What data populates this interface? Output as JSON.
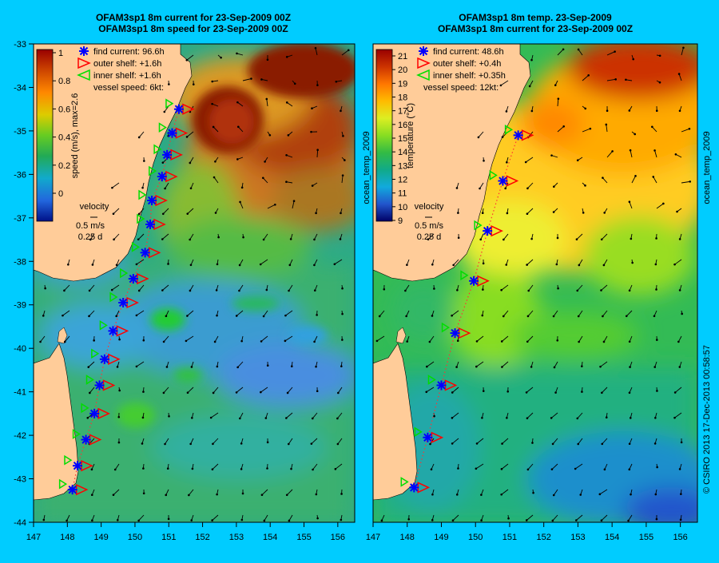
{
  "colors": {
    "background": "#00ccff",
    "land": "#ffcc99",
    "speed_low": "#0044cc",
    "speed_mid": "#22bb44",
    "speed_high": "#993300",
    "find_marker": "#0000ff",
    "outer_marker": "#ff0000",
    "inner_marker": "#00dd00"
  },
  "panels": [
    {
      "id": "speed",
      "title_line1": "OFAM3sp1 8m current for 23-Sep-2009 00Z",
      "title_line2": "OFAM3sp1 8m speed for 23-Sep-2009 00Z",
      "colorbar": {
        "label": "speed (m/s), max=2.6",
        "ticks": [
          "1",
          "0.8",
          "0.6",
          "0.4",
          "0.2",
          "0"
        ],
        "side_label": ""
      },
      "legend": {
        "find": "find current: 96.6h",
        "outer": "outer shelf: +1.6h",
        "inner": "inner shelf: +1.6h",
        "vessel": "vessel speed: 6kt:"
      },
      "velocity_key": {
        "title": "velocity",
        "speed": "0.5 m/s",
        "time": "0.25 d"
      }
    },
    {
      "id": "temp",
      "title_line1": "OFAM3sp1 8m temp. 23-Sep-2009",
      "title_line2": "OFAM3sp1 8m current for 23-Sep-2009 00Z",
      "colorbar": {
        "label": "temperature (°C)",
        "ticks": [
          "21",
          "20",
          "19",
          "18",
          "17",
          "16",
          "15",
          "14",
          "13",
          "12",
          "11",
          "10",
          "9"
        ],
        "side_label": "ocean_temp_2009"
      },
      "legend": {
        "find": "find current: 48.6h",
        "outer": "outer shelf: +0.4h",
        "inner": "inner shelf: +0.35h",
        "vessel": "vessel speed: 12kt:"
      },
      "velocity_key": {
        "title": "velocity",
        "speed": "0.5 m/s",
        "time": "0.25 d"
      }
    }
  ],
  "axes": {
    "y_ticks": [
      "-33",
      "-34",
      "-35",
      "-36",
      "-37",
      "-38",
      "-39",
      "-40",
      "-41",
      "-42",
      "-43",
      "-44"
    ],
    "x_ticks": [
      "147",
      "148",
      "149",
      "150",
      "151",
      "152",
      "153",
      "154",
      "155",
      "156"
    ],
    "lon_range": [
      147,
      156.5
    ],
    "lat_range": [
      -44,
      -33
    ]
  },
  "right_margin": {
    "top": "ocean_temp_2009",
    "bottom": "© CSIRO 2013   17-Dec-2013 00:58:57"
  },
  "track_points": [
    {
      "lon": 148.15,
      "lat": -43.25
    },
    {
      "lon": 148.3,
      "lat": -42.7
    },
    {
      "lon": 148.55,
      "lat": -42.1
    },
    {
      "lon": 148.8,
      "lat": -41.5
    },
    {
      "lon": 148.95,
      "lat": -40.85
    },
    {
      "lon": 149.1,
      "lat": -40.25
    },
    {
      "lon": 149.35,
      "lat": -39.6
    },
    {
      "lon": 149.65,
      "lat": -38.95
    },
    {
      "lon": 149.95,
      "lat": -38.4
    },
    {
      "lon": 150.3,
      "lat": -37.8
    },
    {
      "lon": 150.45,
      "lat": -37.15
    },
    {
      "lon": 150.5,
      "lat": -36.6
    },
    {
      "lon": 150.8,
      "lat": -36.05
    },
    {
      "lon": 150.95,
      "lat": -35.55
    },
    {
      "lon": 151.1,
      "lat": -35.05
    },
    {
      "lon": 151.3,
      "lat": -34.5
    }
  ],
  "track_points_temp": [
    {
      "lon": 148.2,
      "lat": -43.2
    },
    {
      "lon": 148.6,
      "lat": -42.05
    },
    {
      "lon": 149.0,
      "lat": -40.85
    },
    {
      "lon": 149.4,
      "lat": -39.65
    },
    {
      "lon": 149.95,
      "lat": -38.45
    },
    {
      "lon": 150.35,
      "lat": -37.3
    },
    {
      "lon": 150.8,
      "lat": -36.15
    },
    {
      "lon": 151.25,
      "lat": -35.1
    }
  ]
}
